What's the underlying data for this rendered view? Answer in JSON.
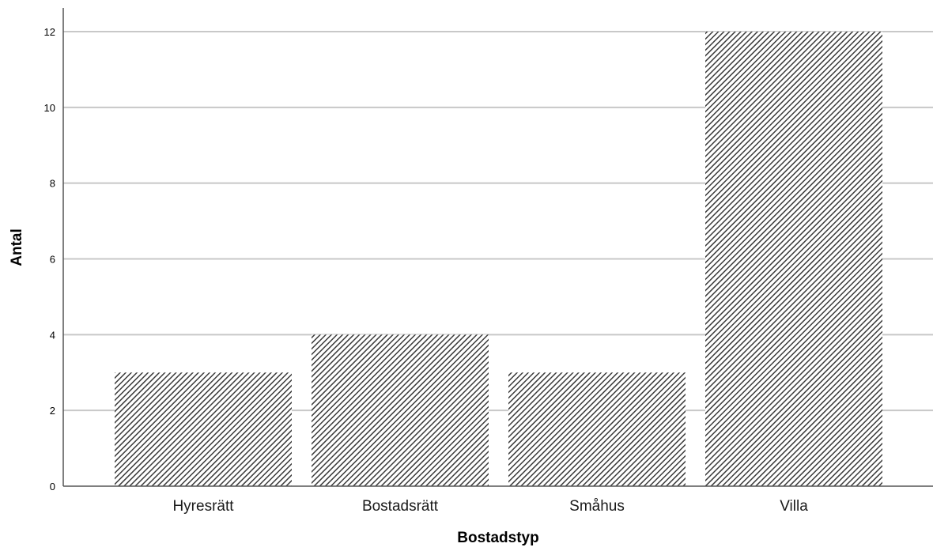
{
  "chart_data": {
    "type": "bar",
    "categories": [
      "Hyresrätt",
      "Bostadsrätt",
      "Småhus",
      "Villa"
    ],
    "values": [
      3,
      4,
      3,
      12
    ],
    "title": "",
    "xlabel": "Bostadstyp",
    "ylabel": "Antal",
    "ylim": [
      0,
      12
    ],
    "yticks": [
      0,
      2,
      4,
      6,
      8,
      10,
      12
    ],
    "grid": "horizontal",
    "bar_fill": "diagonal-hatch",
    "bar_color": "#333333",
    "background": "#ffffff"
  }
}
